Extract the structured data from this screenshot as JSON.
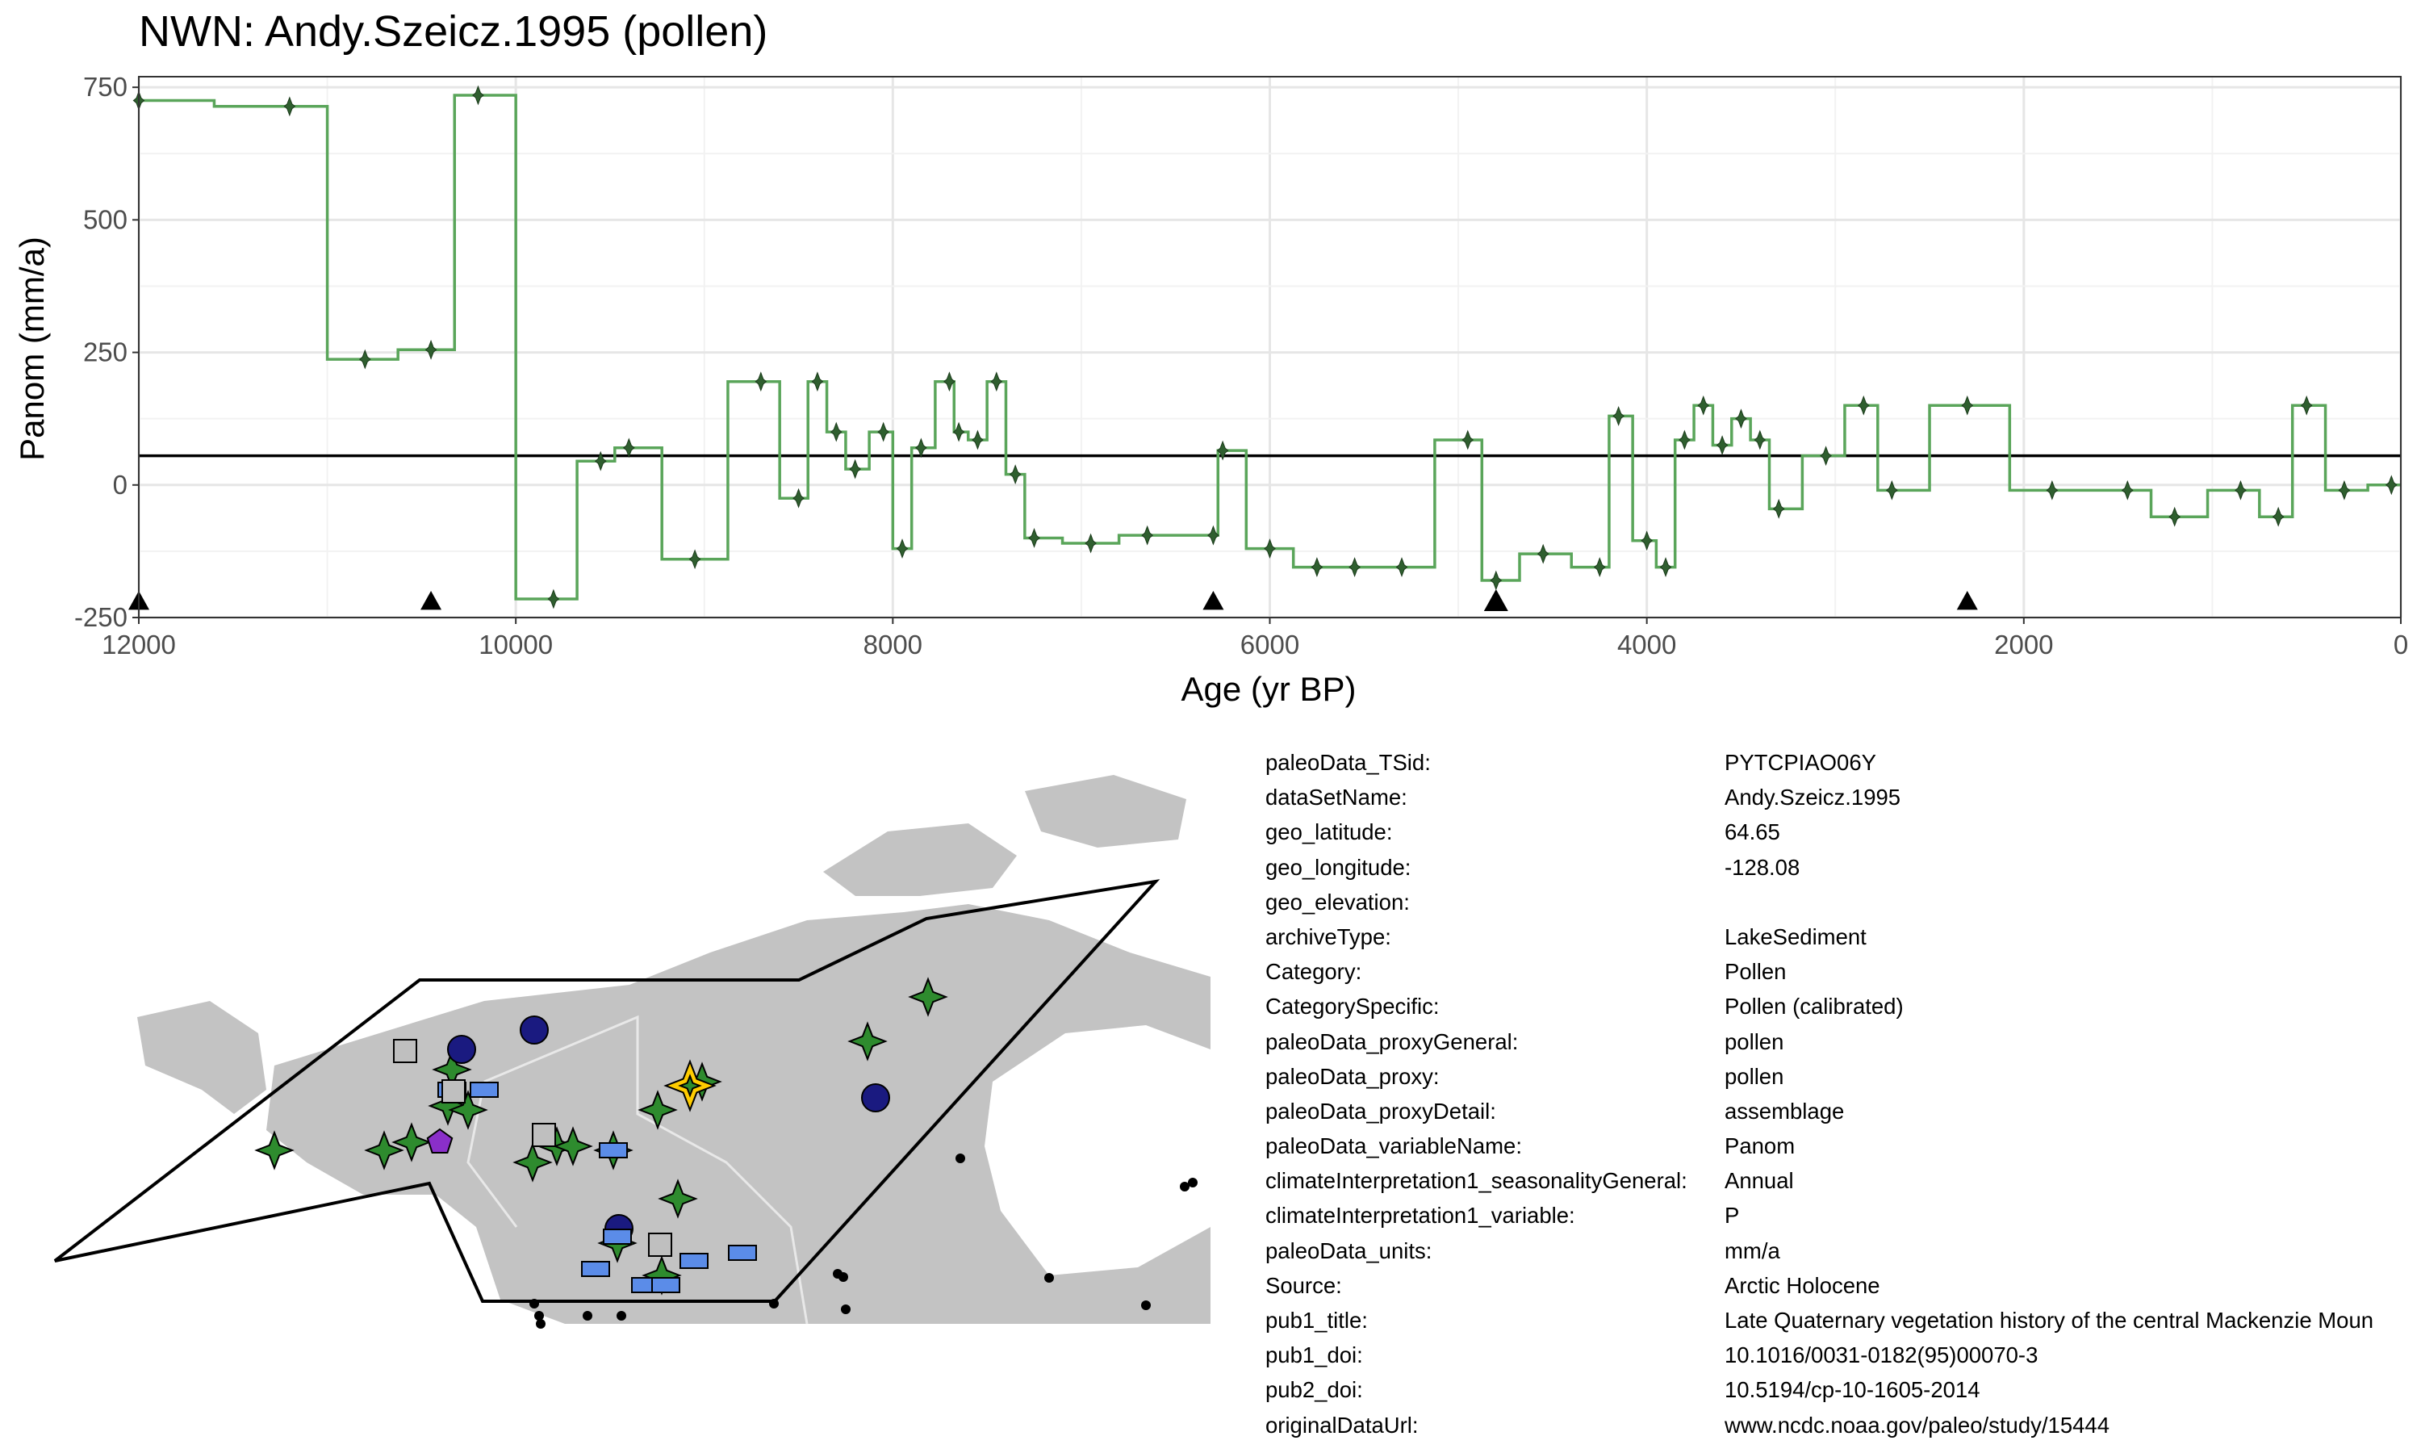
{
  "chart_data": {
    "type": "line",
    "title": "NWN: Andy.Szeicz.1995 (pollen)",
    "xlabel": "Age (yr BP)",
    "ylabel": "Panom (mm/a)",
    "xlim": [
      12000,
      0
    ],
    "ylim": [
      -250,
      770
    ],
    "x_ticks": [
      12000,
      10000,
      8000,
      6000,
      4000,
      2000,
      0
    ],
    "y_ticks": [
      750,
      500,
      250,
      0,
      -250
    ],
    "grid": true,
    "reference_line": 55,
    "line_color": "#5aa55a",
    "series": [
      {
        "values": [
          [
            12000,
            725
          ],
          [
            11200,
            714
          ],
          [
            10800,
            237
          ],
          [
            10450,
            255
          ],
          [
            10200,
            735
          ],
          [
            9800,
            -215
          ],
          [
            9550,
            45
          ],
          [
            9400,
            70
          ],
          [
            9050,
            -140
          ],
          [
            8700,
            195
          ],
          [
            8500,
            -25
          ],
          [
            8400,
            195
          ],
          [
            8300,
            100
          ],
          [
            8200,
            30
          ],
          [
            8050,
            100
          ],
          [
            7950,
            -120
          ],
          [
            7850,
            70
          ],
          [
            7700,
            195
          ],
          [
            7650,
            100
          ],
          [
            7550,
            85
          ],
          [
            7450,
            195
          ],
          [
            7350,
            20
          ],
          [
            7250,
            -100
          ],
          [
            6950,
            -110
          ],
          [
            6650,
            -95
          ],
          [
            6300,
            -95
          ],
          [
            6250,
            65
          ],
          [
            6000,
            -120
          ],
          [
            5750,
            -155
          ],
          [
            5550,
            -155
          ],
          [
            5300,
            -155
          ],
          [
            4950,
            85
          ],
          [
            4800,
            -180
          ],
          [
            4550,
            -130
          ],
          [
            4250,
            -155
          ],
          [
            4150,
            130
          ],
          [
            4000,
            -105
          ],
          [
            3900,
            -155
          ],
          [
            3800,
            85
          ],
          [
            3700,
            150
          ],
          [
            3600,
            75
          ],
          [
            3500,
            125
          ],
          [
            3400,
            85
          ],
          [
            3300,
            -45
          ],
          [
            3050,
            55
          ],
          [
            2850,
            150
          ],
          [
            2700,
            -10
          ],
          [
            2300,
            150
          ],
          [
            1850,
            -10
          ],
          [
            1450,
            -10
          ],
          [
            1200,
            -60
          ],
          [
            850,
            -10
          ],
          [
            650,
            -60
          ],
          [
            500,
            150
          ],
          [
            300,
            -10
          ],
          [
            50,
            0
          ]
        ]
      }
    ],
    "age_markers": [
      12000,
      10450,
      6300,
      4800,
      2300
    ]
  },
  "meta": [
    {
      "key": "paleoData_TSid:",
      "value": "PYTCPIAO06Y"
    },
    {
      "key": "dataSetName:",
      "value": "Andy.Szeicz.1995"
    },
    {
      "key": "geo_latitude:",
      "value": "64.65"
    },
    {
      "key": "geo_longitude:",
      "value": "-128.08"
    },
    {
      "key": "geo_elevation:",
      "value": ""
    },
    {
      "key": "archiveType:",
      "value": "LakeSediment"
    },
    {
      "key": "Category:",
      "value": "Pollen"
    },
    {
      "key": "CategorySpecific:",
      "value": "Pollen (calibrated)"
    },
    {
      "key": "paleoData_proxyGeneral:",
      "value": "pollen"
    },
    {
      "key": "paleoData_proxy:",
      "value": "pollen"
    },
    {
      "key": "paleoData_proxyDetail:",
      "value": "assemblage"
    },
    {
      "key": "paleoData_variableName:",
      "value": "Panom"
    },
    {
      "key": "climateInterpretation1_seasonalityGeneral:",
      "value": "Annual"
    },
    {
      "key": "climateInterpretation1_variable:",
      "value": "P"
    },
    {
      "key": "paleoData_units:",
      "value": "mm/a"
    },
    {
      "key": "Source:",
      "value": "Arctic Holocene"
    },
    {
      "key": "pub1_title:",
      "value": "Late Quaternary vegetation history of the central Mackenzie Moun"
    },
    {
      "key": "pub1_doi:",
      "value": "10.1016/0031-0182(95)00070-3"
    },
    {
      "key": "pub2_doi:",
      "value": "10.5194/cp-10-1605-2014"
    },
    {
      "key": "originalDataUrl:",
      "value": "www.ncdc.noaa.gov/paleo/study/15444"
    }
  ],
  "map": {
    "colors": {
      "land": "#c3c3c3",
      "border": "#e8e8e8",
      "pollen_marker": "#2e8b2e",
      "highlight_marker": "#ffcc00",
      "circle_marker": "#1a1a80",
      "rect_marker": "#5b8ce8",
      "square_marker": "#bfbfbf",
      "pentagon_marker": "#8a2fc9"
    }
  }
}
